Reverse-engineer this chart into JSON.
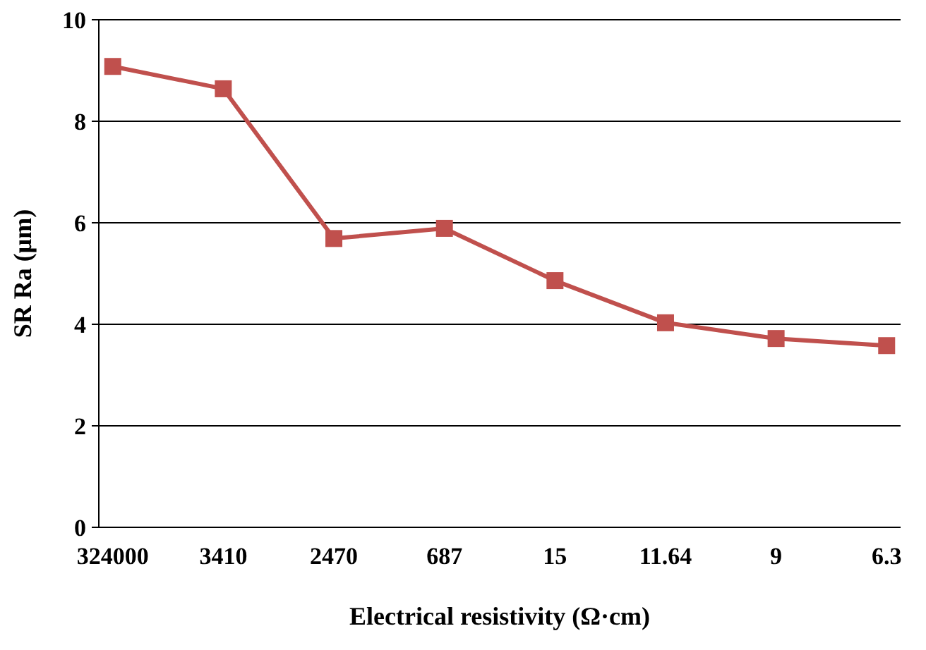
{
  "chart_data": {
    "type": "line",
    "xlabel": "Electrical resistivity (Ω·cm)",
    "ylabel": "SR Ra (μm)",
    "categories": [
      "324000",
      "3410",
      "2470",
      "687",
      "15",
      "11.64",
      "9",
      "6.3"
    ],
    "series": [
      {
        "color": "#c0504d",
        "values": [
          9.08,
          8.64,
          5.69,
          5.89,
          4.86,
          4.03,
          3.72,
          3.58
        ]
      }
    ],
    "ylim": [
      0,
      10
    ],
    "yticks": [
      0,
      2,
      4,
      6,
      8,
      10
    ],
    "grid": "y",
    "marker": "square",
    "line_style": "solid"
  }
}
